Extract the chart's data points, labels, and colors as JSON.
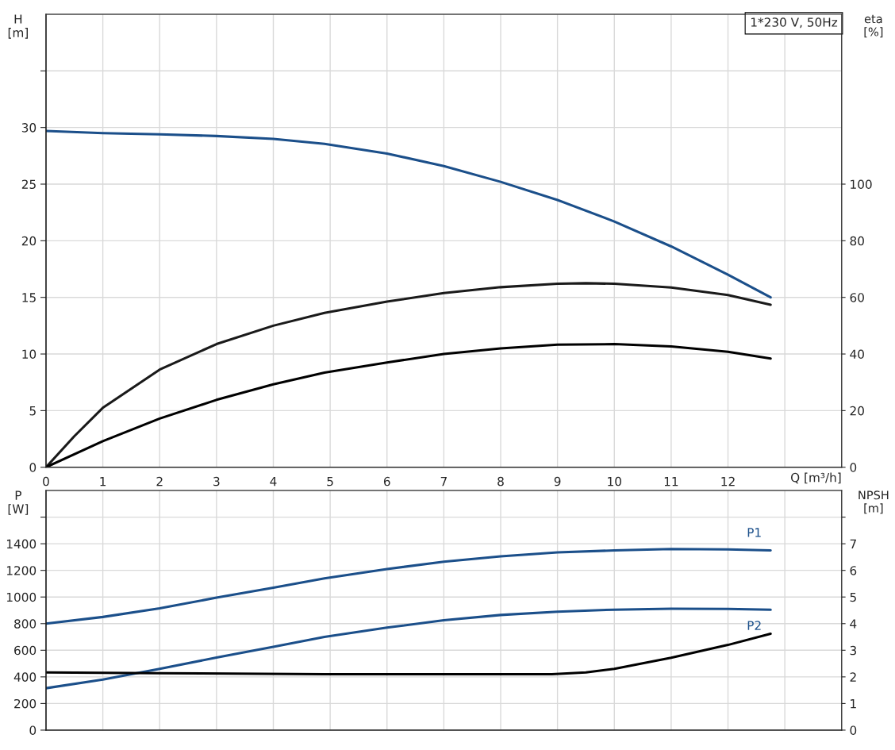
{
  "chart_data": [
    {
      "type": "line",
      "ylabel": "H\n[m]",
      "y2label": "eta\n[%]",
      "xlabel": "Q [m³/h]",
      "annotations": [
        "1*230 V, 50Hz"
      ],
      "x": [
        0,
        1,
        2,
        3,
        4,
        4.9,
        6,
        7,
        8,
        9,
        10,
        11,
        12,
        12.75
      ],
      "series": [
        {
          "color": "#1b4f8a",
          "values": [
            29.7,
            29.5,
            29.4,
            29.25,
            29.0,
            28.55,
            27.7,
            26.6,
            25.2,
            23.6,
            21.7,
            19.5,
            17.0,
            15.0
          ]
        },
        {
          "color": "#1a1a1a",
          "axis": "y2",
          "x": [
            0,
            0.5,
            1,
            2,
            3,
            4,
            4.9,
            6,
            7,
            8,
            9,
            9.5,
            10,
            11,
            12,
            12.75
          ],
          "values": [
            0,
            11,
            21,
            34.5,
            43.5,
            50,
            54.5,
            58.5,
            61.5,
            63.6,
            64.8,
            65,
            64.8,
            63.5,
            60.8,
            57.4
          ]
        },
        {
          "color": "#000000",
          "axis": "y2",
          "values": [
            0,
            9.2,
            17.2,
            23.8,
            29.3,
            33.4,
            37,
            40,
            42,
            43.3,
            43.5,
            42.7,
            40.8,
            38.4
          ]
        }
      ],
      "xlim": [
        0,
        14
      ],
      "xticks": [
        0,
        1,
        2,
        3,
        4,
        5,
        6,
        7,
        8,
        9,
        10,
        11,
        12,
        {
          "value": 13,
          "label": null
        }
      ],
      "ylim": [
        0,
        40
      ],
      "yticks": [
        0,
        5,
        10,
        15,
        20,
        25,
        30,
        {
          "value": 35,
          "label": null
        }
      ],
      "y2lim": [
        0,
        160
      ],
      "y2ticks": [
        0,
        20,
        40,
        60,
        80,
        100
      ],
      "grid": true
    },
    {
      "type": "line",
      "ylabel": "P\n[W]",
      "y2label": "NPSH\n[m]",
      "x": [
        0,
        1,
        2,
        3,
        4,
        4.9,
        6,
        7,
        8,
        9,
        10,
        11,
        12,
        12.75
      ],
      "series": [
        {
          "name": "P1",
          "color": "#1b4f8a",
          "values": [
            800,
            850,
            915,
            995,
            1070,
            1140,
            1210,
            1265,
            1305,
            1335,
            1350,
            1360,
            1358,
            1350
          ]
        },
        {
          "name": "P2",
          "color": "#1b4f8a",
          "values": [
            315,
            380,
            460,
            545,
            625,
            700,
            770,
            825,
            865,
            890,
            905,
            912,
            910,
            905
          ]
        },
        {
          "color": "#000000",
          "axis": "y2",
          "x": [
            0,
            2,
            4.9,
            7,
            8.9,
            9.5,
            10,
            11,
            12,
            12.75
          ],
          "values": [
            2.17,
            2.14,
            2.1,
            2.1,
            2.1,
            2.17,
            2.3,
            2.72,
            3.2,
            3.62
          ]
        }
      ],
      "xlim": [
        0,
        14
      ],
      "xticks": [
        0,
        1,
        2,
        3,
        4,
        5,
        6,
        7,
        8,
        9,
        10,
        11,
        12,
        13
      ],
      "ylim": [
        0,
        1800
      ],
      "yticks": [
        0,
        200,
        400,
        600,
        800,
        1000,
        1200,
        1400,
        {
          "value": 1600,
          "label": null
        }
      ],
      "y2lim": [
        0,
        9
      ],
      "y2ticks": [
        0,
        1,
        2,
        3,
        4,
        5,
        6,
        7,
        {
          "value": 8,
          "label": null
        }
      ],
      "tick_labels": "y",
      "grid": true
    }
  ]
}
